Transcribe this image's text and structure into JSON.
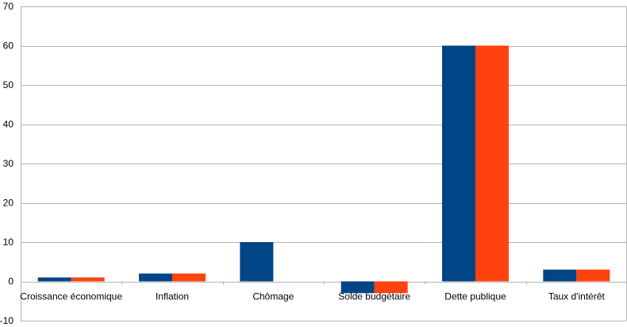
{
  "chart_data": {
    "type": "bar",
    "title": "",
    "xlabel": "",
    "ylabel": "",
    "categories": [
      "Croissance économique",
      "Inflation",
      "Chômage",
      "Solde budgétaire",
      "Dette publique",
      "Taux d'intérêt"
    ],
    "series": [
      {
        "values": [
          1,
          2,
          10,
          -3,
          60,
          3
        ]
      },
      {
        "values": [
          1,
          2,
          0,
          -3,
          60,
          3
        ]
      }
    ],
    "ylim": [
      -10,
      70
    ],
    "yticks": [
      -10,
      0,
      10,
      20,
      30,
      40,
      50,
      60,
      70
    ],
    "grid": true,
    "legend": "none",
    "colors": [
      "#004586",
      "#ff420e"
    ]
  }
}
